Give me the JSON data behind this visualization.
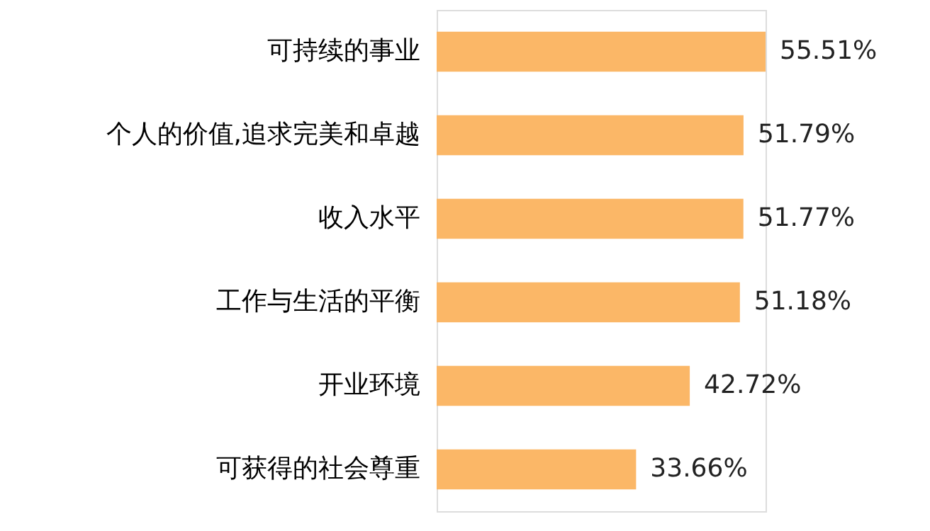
{
  "chart_data": {
    "type": "bar",
    "orientation": "horizontal",
    "categories": [
      "可持续的事业",
      "个人的价值,追求完美和卓越",
      "收入水平",
      "工作与生活的平衡",
      "开业环境",
      "可获得的社会尊重"
    ],
    "values": [
      55.51,
      51.79,
      51.77,
      51.18,
      42.72,
      33.66
    ],
    "value_labels": [
      "55.51%",
      "51.79%",
      "51.77%",
      "51.18%",
      "42.72%",
      "33.66%"
    ],
    "color": "#fbb767",
    "grid": false
  }
}
